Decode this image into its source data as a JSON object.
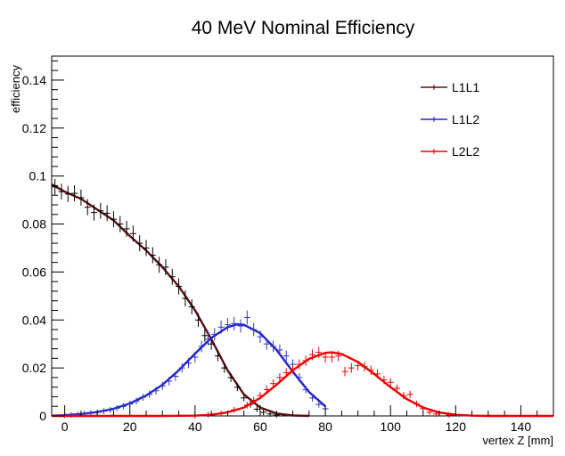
{
  "chart_data": {
    "type": "scatter",
    "title": "40 MeV Nominal Efficiency",
    "xlabel": "vertex Z [mm]",
    "ylabel": "efficiency",
    "xlim": [
      -4,
      150
    ],
    "ylim": [
      0,
      0.15
    ],
    "x_ticks": [
      0,
      20,
      40,
      60,
      80,
      100,
      120,
      140
    ],
    "y_ticks": [
      0,
      0.02,
      0.04,
      0.06,
      0.08,
      0.1,
      0.12,
      0.14
    ],
    "x_tick_labels": [
      "0",
      "20",
      "40",
      "60",
      "80",
      "100",
      "120",
      "140"
    ],
    "y_tick_labels": [
      "0",
      "0.02",
      "0.04",
      "0.06",
      "0.08",
      "0.1",
      "0.12",
      "0.14"
    ],
    "grid": false,
    "legend_position": "top-right",
    "series": [
      {
        "name": "L1L1",
        "color": "#000000",
        "fit_color": "#5a0f12",
        "points": [
          [
            -3,
            0.0955
          ],
          [
            -1,
            0.0935
          ],
          [
            1,
            0.0925
          ],
          [
            3,
            0.0928
          ],
          [
            5,
            0.091
          ],
          [
            7,
            0.087
          ],
          [
            9,
            0.0848
          ],
          [
            11,
            0.0855
          ],
          [
            13,
            0.0845
          ],
          [
            15,
            0.082
          ],
          [
            17,
            0.08
          ],
          [
            19,
            0.078
          ],
          [
            21,
            0.076
          ],
          [
            23,
            0.072
          ],
          [
            25,
            0.07
          ],
          [
            27,
            0.067
          ],
          [
            29,
            0.063
          ],
          [
            31,
            0.062
          ],
          [
            33,
            0.058
          ],
          [
            35,
            0.054
          ],
          [
            37,
            0.049
          ],
          [
            39,
            0.0455
          ],
          [
            41,
            0.04
          ],
          [
            43,
            0.0335
          ],
          [
            45,
            0.03
          ],
          [
            47,
            0.025
          ],
          [
            49,
            0.02
          ],
          [
            51,
            0.016
          ],
          [
            53,
            0.012
          ],
          [
            55,
            0.0075
          ],
          [
            57,
            0.0048
          ],
          [
            59,
            0.0028
          ],
          [
            61,
            0.0015
          ],
          [
            63,
            0.0008
          ],
          [
            65,
            0.0004
          ]
        ],
        "fit": [
          [
            -4,
            0.0965
          ],
          [
            0,
            0.0935
          ],
          [
            5,
            0.0905
          ],
          [
            10,
            0.086
          ],
          [
            15,
            0.0815
          ],
          [
            20,
            0.075
          ],
          [
            25,
            0.069
          ],
          [
            30,
            0.062
          ],
          [
            35,
            0.054
          ],
          [
            40,
            0.044
          ],
          [
            45,
            0.032
          ],
          [
            50,
            0.019
          ],
          [
            55,
            0.009
          ],
          [
            60,
            0.0035
          ],
          [
            65,
            0.001
          ],
          [
            70,
            0.0002
          ],
          [
            75,
            0.0
          ]
        ]
      },
      {
        "name": "L1L2",
        "color": "#3333cc",
        "fit_color": "#2323c8",
        "points": [
          [
            0,
            0.0002
          ],
          [
            2,
            0.0004
          ],
          [
            4,
            0.0006
          ],
          [
            6,
            0.001
          ],
          [
            8,
            0.0012
          ],
          [
            10,
            0.0015
          ],
          [
            12,
            0.002
          ],
          [
            14,
            0.0025
          ],
          [
            16,
            0.0032
          ],
          [
            18,
            0.004
          ],
          [
            20,
            0.005
          ],
          [
            22,
            0.0062
          ],
          [
            24,
            0.0078
          ],
          [
            26,
            0.009
          ],
          [
            28,
            0.0105
          ],
          [
            30,
            0.0125
          ],
          [
            32,
            0.0145
          ],
          [
            34,
            0.0165
          ],
          [
            36,
            0.02
          ],
          [
            38,
            0.022
          ],
          [
            40,
            0.0245
          ],
          [
            42,
            0.029
          ],
          [
            44,
            0.032
          ],
          [
            46,
            0.034
          ],
          [
            48,
            0.037
          ],
          [
            50,
            0.038
          ],
          [
            52,
            0.0385
          ],
          [
            54,
            0.0375
          ],
          [
            56,
            0.041
          ],
          [
            58,
            0.036
          ],
          [
            60,
            0.033
          ],
          [
            62,
            0.03
          ],
          [
            64,
            0.029
          ],
          [
            66,
            0.0275
          ],
          [
            68,
            0.025
          ],
          [
            70,
            0.0215
          ],
          [
            72,
            0.016
          ],
          [
            74,
            0.011
          ],
          [
            76,
            0.0075
          ],
          [
            78,
            0.0048
          ],
          [
            80,
            0.003
          ]
        ],
        "fit": [
          [
            -4,
            0.0001
          ],
          [
            0,
            0.0003
          ],
          [
            5,
            0.0008
          ],
          [
            10,
            0.0016
          ],
          [
            15,
            0.003
          ],
          [
            20,
            0.0052
          ],
          [
            25,
            0.0085
          ],
          [
            30,
            0.013
          ],
          [
            35,
            0.019
          ],
          [
            40,
            0.026
          ],
          [
            45,
            0.0325
          ],
          [
            50,
            0.037
          ],
          [
            53,
            0.0382
          ],
          [
            55,
            0.038
          ],
          [
            60,
            0.0345
          ],
          [
            65,
            0.0275
          ],
          [
            70,
            0.0185
          ],
          [
            75,
            0.01
          ],
          [
            80,
            0.004
          ]
        ]
      },
      {
        "name": "L2L2",
        "color": "#ee0000",
        "fit_color": "#ee0000",
        "points": [
          [
            40,
            0.0
          ],
          [
            44,
            0.0005
          ],
          [
            48,
            0.001
          ],
          [
            52,
            0.0025
          ],
          [
            56,
            0.0045
          ],
          [
            58,
            0.0065
          ],
          [
            60,
            0.0085
          ],
          [
            62,
            0.011
          ],
          [
            64,
            0.0135
          ],
          [
            66,
            0.016
          ],
          [
            68,
            0.018
          ],
          [
            70,
            0.0195
          ],
          [
            72,
            0.0215
          ],
          [
            74,
            0.023
          ],
          [
            76,
            0.0255
          ],
          [
            78,
            0.0265
          ],
          [
            80,
            0.0245
          ],
          [
            82,
            0.0245
          ],
          [
            84,
            0.025
          ],
          [
            86,
            0.0185
          ],
          [
            88,
            0.02
          ],
          [
            90,
            0.021
          ],
          [
            92,
            0.0205
          ],
          [
            94,
            0.019
          ],
          [
            96,
            0.0175
          ],
          [
            98,
            0.015
          ],
          [
            100,
            0.014
          ],
          [
            102,
            0.0115
          ],
          [
            104,
            0.0085
          ],
          [
            106,
            0.009
          ],
          [
            108,
            0.005
          ],
          [
            110,
            0.003
          ],
          [
            112,
            0.0015
          ],
          [
            114,
            0.0008
          ],
          [
            118,
            0.0004
          ]
        ],
        "fit": [
          [
            -4,
            0.0
          ],
          [
            30,
            0.0
          ],
          [
            40,
            0.0001
          ],
          [
            45,
            0.0005
          ],
          [
            50,
            0.0015
          ],
          [
            55,
            0.0035
          ],
          [
            60,
            0.0075
          ],
          [
            65,
            0.013
          ],
          [
            70,
            0.019
          ],
          [
            75,
            0.0238
          ],
          [
            80,
            0.0263
          ],
          [
            82,
            0.0265
          ],
          [
            85,
            0.0258
          ],
          [
            90,
            0.0225
          ],
          [
            95,
            0.0175
          ],
          [
            100,
            0.012
          ],
          [
            105,
            0.007
          ],
          [
            110,
            0.0035
          ],
          [
            115,
            0.0014
          ],
          [
            120,
            0.0005
          ],
          [
            125,
            0.0001
          ],
          [
            130,
            0.0
          ],
          [
            150,
            0.0
          ]
        ]
      }
    ]
  }
}
